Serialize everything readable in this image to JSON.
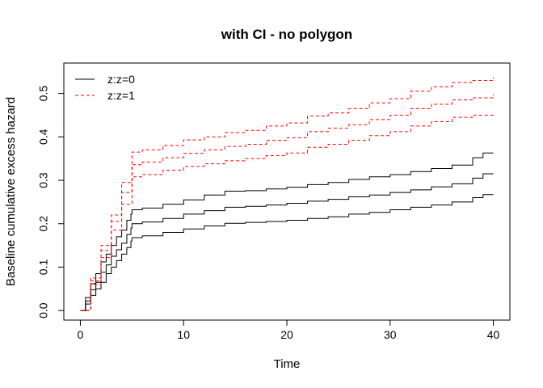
{
  "chart_data": {
    "type": "line",
    "title": "with CI - no polygon",
    "xlabel": "Time",
    "ylabel": "Baseline cumulative excess hazard",
    "xlim": [
      -1.6,
      41.6
    ],
    "ylim": [
      -0.022,
      0.57
    ],
    "xticks": [
      0,
      10,
      20,
      30,
      40
    ],
    "yticks": [
      0.0,
      0.1,
      0.2,
      0.3,
      0.4,
      0.5
    ],
    "ytick_labels": [
      "0.0",
      "0.1",
      "0.2",
      "0.3",
      "0.4",
      "0.5"
    ],
    "grid": false,
    "legend_position": "top-left",
    "legend": [
      {
        "label": "z:z=0",
        "color": "#000000",
        "dash": "solid"
      },
      {
        "label": "z:z=1",
        "color": "#ff0000",
        "dash": "dashed"
      }
    ],
    "series": [
      {
        "group": "z:z=0",
        "band": "upper",
        "color": "#000000",
        "dash": "solid",
        "x": [
          0,
          0.5,
          1,
          1.5,
          2,
          2.5,
          3,
          3.5,
          4,
          4.5,
          4.9,
          5,
          6,
          8,
          10,
          12,
          14,
          16,
          18,
          20,
          22,
          24,
          26,
          28,
          30,
          32,
          34,
          36,
          38,
          39,
          40
        ],
        "y": [
          0,
          0.03,
          0.062,
          0.085,
          0.112,
          0.13,
          0.15,
          0.17,
          0.185,
          0.208,
          0.222,
          0.232,
          0.236,
          0.245,
          0.255,
          0.266,
          0.275,
          0.276,
          0.28,
          0.284,
          0.29,
          0.295,
          0.302,
          0.308,
          0.313,
          0.32,
          0.327,
          0.335,
          0.352,
          0.363,
          0.363
        ]
      },
      {
        "group": "z:z=0",
        "band": "estimate",
        "color": "#000000",
        "dash": "solid",
        "x": [
          0,
          0.5,
          1,
          1.5,
          2,
          2.5,
          3,
          3.5,
          4,
          4.5,
          4.9,
          5,
          6,
          8,
          10,
          12,
          14,
          16,
          18,
          20,
          22,
          24,
          26,
          28,
          30,
          32,
          34,
          36,
          38,
          39,
          40
        ],
        "y": [
          0,
          0.022,
          0.048,
          0.065,
          0.088,
          0.105,
          0.125,
          0.14,
          0.155,
          0.175,
          0.19,
          0.2,
          0.204,
          0.212,
          0.222,
          0.23,
          0.238,
          0.24,
          0.243,
          0.247,
          0.252,
          0.256,
          0.262,
          0.266,
          0.272,
          0.278,
          0.285,
          0.292,
          0.305,
          0.315,
          0.315
        ]
      },
      {
        "group": "z:z=0",
        "band": "lower",
        "color": "#000000",
        "dash": "solid",
        "x": [
          0,
          0.5,
          1,
          1.5,
          2,
          2.5,
          3,
          3.5,
          4,
          4.5,
          4.9,
          5,
          6,
          8,
          10,
          12,
          14,
          16,
          18,
          20,
          22,
          24,
          26,
          28,
          30,
          32,
          34,
          36,
          38,
          39,
          40
        ],
        "y": [
          0,
          0.015,
          0.035,
          0.05,
          0.065,
          0.085,
          0.1,
          0.115,
          0.13,
          0.145,
          0.16,
          0.168,
          0.172,
          0.18,
          0.188,
          0.195,
          0.201,
          0.203,
          0.205,
          0.208,
          0.212,
          0.216,
          0.222,
          0.226,
          0.232,
          0.238,
          0.243,
          0.25,
          0.26,
          0.267,
          0.267
        ]
      },
      {
        "group": "z:z=1",
        "band": "upper",
        "color": "#ff0000",
        "dash": "dashed",
        "x": [
          0,
          1,
          2,
          3,
          4,
          5,
          6,
          8,
          10,
          12,
          14,
          16,
          18,
          20,
          22,
          24,
          26,
          28,
          30,
          32,
          34,
          36,
          38,
          40
        ],
        "y": [
          0,
          0.075,
          0.15,
          0.22,
          0.295,
          0.365,
          0.37,
          0.38,
          0.393,
          0.4,
          0.41,
          0.415,
          0.425,
          0.432,
          0.448,
          0.455,
          0.465,
          0.478,
          0.488,
          0.505,
          0.515,
          0.525,
          0.53,
          0.537
        ]
      },
      {
        "group": "z:z=1",
        "band": "estimate",
        "color": "#ff0000",
        "dash": "dashed",
        "x": [
          0,
          1,
          2,
          3,
          4,
          5,
          6,
          8,
          10,
          12,
          14,
          16,
          18,
          20,
          22,
          24,
          26,
          28,
          30,
          32,
          34,
          36,
          38,
          40
        ],
        "y": [
          0,
          0.068,
          0.138,
          0.205,
          0.272,
          0.336,
          0.342,
          0.352,
          0.362,
          0.37,
          0.378,
          0.383,
          0.392,
          0.398,
          0.412,
          0.42,
          0.428,
          0.44,
          0.45,
          0.465,
          0.475,
          0.485,
          0.49,
          0.498
        ]
      },
      {
        "group": "z:z=1",
        "band": "lower",
        "color": "#ff0000",
        "dash": "dashed",
        "x": [
          0,
          1,
          2,
          3,
          4,
          5,
          6,
          8,
          10,
          12,
          14,
          16,
          18,
          20,
          22,
          24,
          26,
          28,
          30,
          32,
          34,
          36,
          38,
          40
        ],
        "y": [
          0,
          0.06,
          0.122,
          0.185,
          0.245,
          0.308,
          0.313,
          0.323,
          0.332,
          0.338,
          0.345,
          0.35,
          0.357,
          0.363,
          0.376,
          0.383,
          0.392,
          0.403,
          0.412,
          0.425,
          0.435,
          0.445,
          0.45,
          0.455
        ]
      }
    ]
  }
}
